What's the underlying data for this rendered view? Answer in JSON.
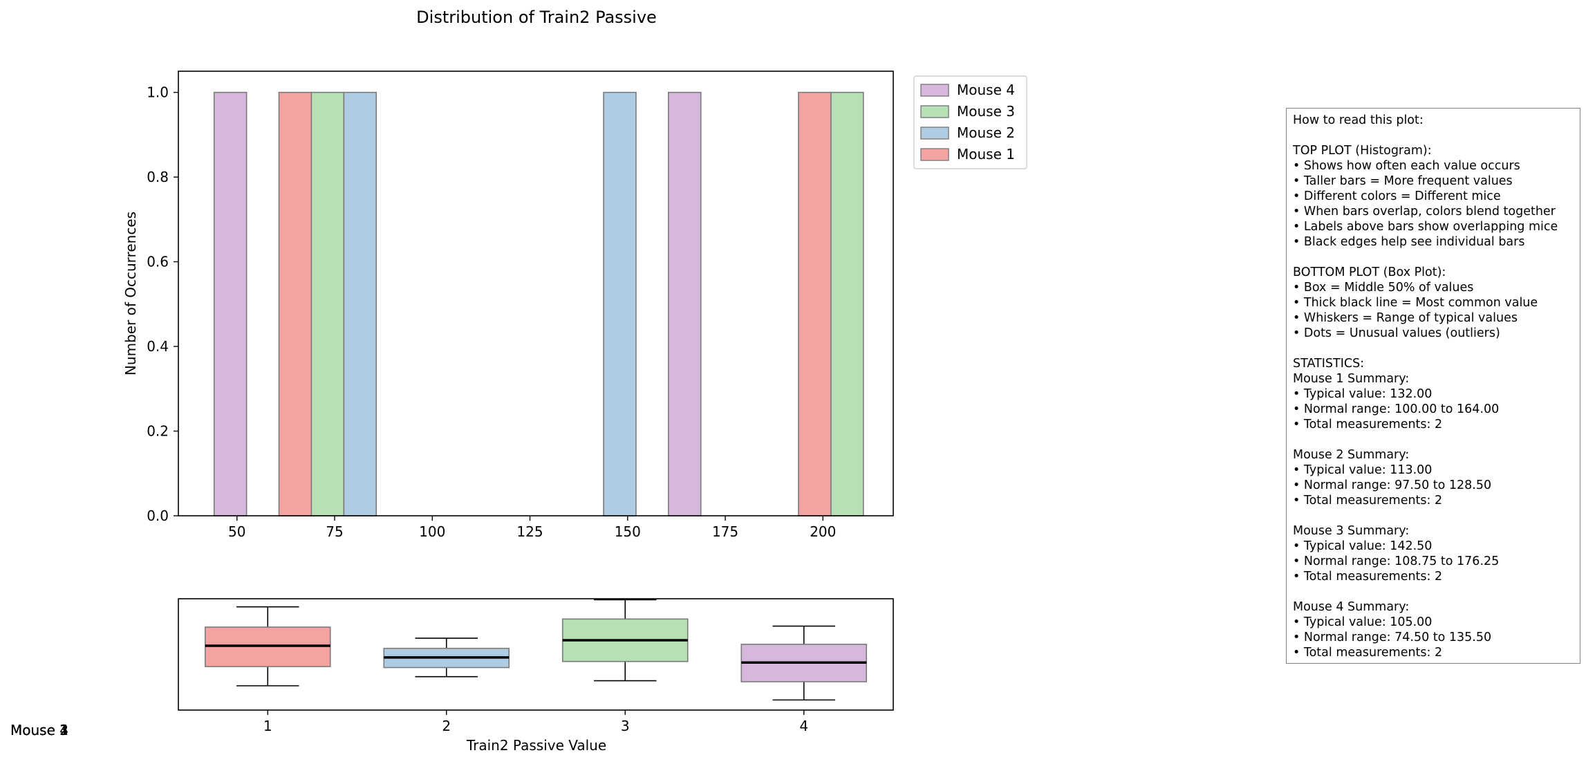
{
  "chart_data": [
    {
      "type": "bar",
      "title": "Distribution of Train2 Passive",
      "ylabel": "Number of Occurrences",
      "xlabel": "",
      "xlim": [
        35,
        218
      ],
      "ylim": [
        0,
        1.05
      ],
      "bin_width": 8.3,
      "x_ticks": [
        50,
        75,
        100,
        125,
        150,
        175,
        200
      ],
      "x_tick_labels": [
        "50",
        "75",
        "100",
        "125",
        "150",
        "175",
        "200"
      ],
      "y_ticks": [
        0.0,
        0.2,
        0.4,
        0.6,
        0.8,
        1.0
      ],
      "y_tick_labels": [
        "0.0",
        "0.2",
        "0.4",
        "0.6",
        "0.8",
        "1.0"
      ],
      "legend_position": "outside-top-right",
      "legend_order": [
        "Mouse 4",
        "Mouse 3",
        "Mouse 2",
        "Mouse 1"
      ],
      "series": [
        {
          "name": "Mouse 1",
          "color": "#f4a3a3",
          "bars": [
            {
              "x": 64.9,
              "count": 1
            },
            {
              "x": 197.9,
              "count": 1
            }
          ]
        },
        {
          "name": "Mouse 2",
          "color": "#aecce4",
          "bars": [
            {
              "x": 81.5,
              "count": 1
            },
            {
              "x": 148.0,
              "count": 1
            }
          ]
        },
        {
          "name": "Mouse 3",
          "color": "#b6e0b6",
          "bars": [
            {
              "x": 73.2,
              "count": 1
            },
            {
              "x": 206.2,
              "count": 1
            }
          ]
        },
        {
          "name": "Mouse 4",
          "color": "#d6b8dc",
          "bars": [
            {
              "x": 48.3,
              "count": 1
            },
            {
              "x": 164.6,
              "count": 1
            }
          ]
        }
      ]
    },
    {
      "type": "box",
      "xlabel": "Train2 Passive Value",
      "x_ticks": [
        1,
        2,
        3,
        4
      ],
      "x_tick_labels": [
        "1",
        "2",
        "3",
        "4"
      ],
      "ylim": [
        -0.05,
        1.05
      ],
      "boxes": [
        {
          "position": 1,
          "color": "#f4a3a3",
          "whisker_low": 0.19,
          "q1": 0.38,
          "median": 0.585,
          "q3": 0.77,
          "whisker_high": 0.97
        },
        {
          "position": 2,
          "color": "#aecce4",
          "whisker_low": 0.28,
          "q1": 0.37,
          "median": 0.47,
          "q3": 0.56,
          "whisker_high": 0.66
        },
        {
          "position": 3,
          "color": "#b6e0b6",
          "whisker_low": 0.24,
          "q1": 0.43,
          "median": 0.64,
          "q3": 0.85,
          "whisker_high": 1.04
        },
        {
          "position": 4,
          "color": "#d6b8dc",
          "whisker_low": 0.05,
          "q1": 0.23,
          "median": 0.42,
          "q3": 0.6,
          "whisker_high": 0.78
        }
      ]
    }
  ],
  "stray_labels": [
    "Mouse 4",
    "Mouse 3",
    "Mouse 2",
    "Mouse 1"
  ],
  "info_box": {
    "lines": [
      "How to read this plot:",
      "",
      "TOP PLOT (Histogram):",
      "• Shows how often each value occurs",
      "• Taller bars = More frequent values",
      "• Different colors = Different mice",
      "• When bars overlap, colors blend together",
      "• Labels above bars show overlapping mice",
      "• Black edges help see individual bars",
      "",
      "BOTTOM PLOT (Box Plot):",
      "• Box = Middle 50% of values",
      "• Thick black line = Most common value",
      "• Whiskers = Range of typical values",
      "• Dots = Unusual values (outliers)",
      "",
      "STATISTICS:",
      "Mouse 1 Summary:",
      "• Typical value: 132.00",
      "• Normal range: 100.00 to 164.00",
      "• Total measurements: 2",
      "",
      "Mouse 2 Summary:",
      "• Typical value: 113.00",
      "• Normal range: 97.50 to 128.50",
      "• Total measurements: 2",
      "",
      "Mouse 3 Summary:",
      "• Typical value: 142.50",
      "• Normal range: 108.75 to 176.25",
      "• Total measurements: 2",
      "",
      "Mouse 4 Summary:",
      "• Typical value: 105.00",
      "• Normal range: 74.50 to 135.50",
      "• Total measurements: 2"
    ]
  }
}
